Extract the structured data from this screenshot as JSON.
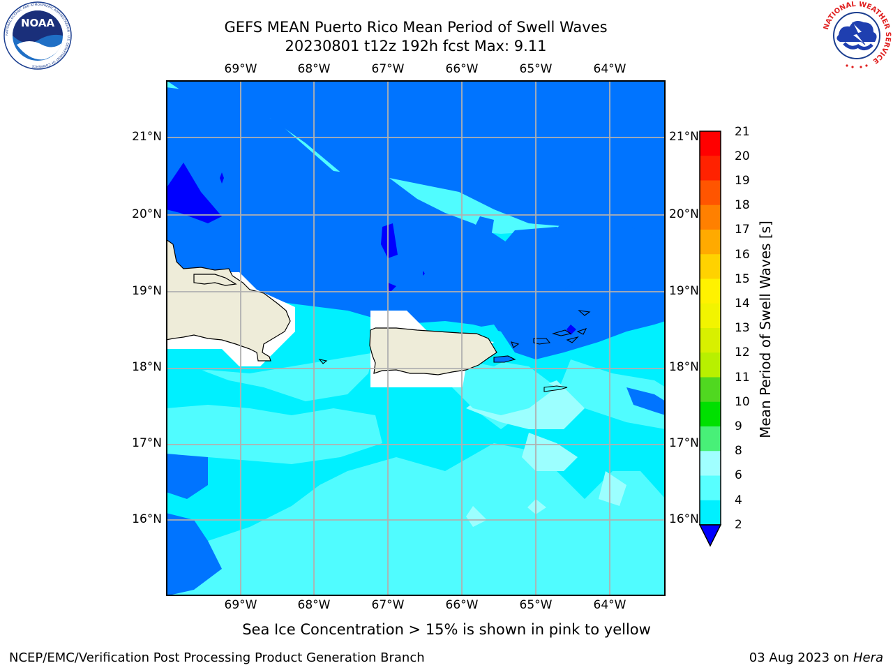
{
  "header": {
    "title_line1": "GEFS MEAN Puerto Rico Mean Period of Swell Waves",
    "title_line2": "20230801 t12z 192h fcst   Max: 9.11"
  },
  "logos": {
    "left": "noaa-logo",
    "right": "national-weather-service-logo",
    "left_text": "NOAA",
    "left_ring_text": "NATIONAL OCEANIC AND ATMOSPHERIC ADMINISTRATION · U.S. DEPARTMENT OF COMMERCE",
    "right_ring_text": "NATIONAL WEATHER SERVICE"
  },
  "map": {
    "lon_labels": [
      "69°W",
      "68°W",
      "67°W",
      "66°W",
      "65°W",
      "64°W"
    ],
    "lat_labels": [
      "21°N",
      "20°N",
      "19°N",
      "18°N",
      "17°N",
      "16°N"
    ],
    "colors": {
      "land": "#eeecd9",
      "coastline": "#000000",
      "grid": "#b0b0b0",
      "band_2_4": "#0074ff",
      "band_4_6": "#00f0ff",
      "band_6_8": "#50fcff",
      "band_8_9": "#9cffff",
      "below_2": "#0000ff",
      "masked": "#ffffff"
    }
  },
  "colorbar": {
    "label": "Mean Period of Swell Waves [s]",
    "ticks": [
      "21",
      "20",
      "19",
      "18",
      "17",
      "16",
      "15",
      "14",
      "13",
      "12",
      "11",
      "10",
      "9",
      "8",
      "6",
      "4",
      "2"
    ],
    "band_colors": [
      "#ff0000",
      "#ff2200",
      "#ff5500",
      "#ff8000",
      "#ffaa00",
      "#ffd200",
      "#fff200",
      "#f2f400",
      "#d8f000",
      "#b8f000",
      "#50d820",
      "#00e000",
      "#48f078",
      "#a0ffff",
      "#58ffff",
      "#00f0ff",
      "#0074ff"
    ],
    "extend_color": "#0000ff"
  },
  "caption": "Sea Ice Concentration > 15% is shown in pink to yellow",
  "footer": {
    "left": "NCEP/EMC/Verification Post Processing Product Generation Branch",
    "right_date": "03 Aug 2023 on ",
    "right_host": "Hera"
  }
}
